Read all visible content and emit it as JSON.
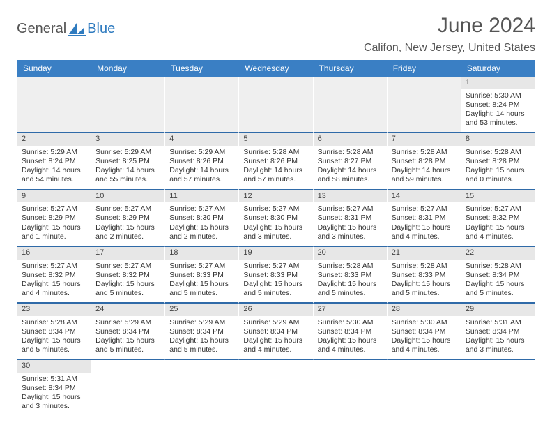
{
  "logo": {
    "general": "General",
    "blue": "Blue"
  },
  "title": "June 2024",
  "location": "Califon, New Jersey, United States",
  "colors": {
    "header_bg": "#3a7fc4",
    "header_text": "#ffffff",
    "week_divider": "#2f6aa8",
    "daynum_bg": "#e7e7e7",
    "logo_blue": "#2f7bbf",
    "text": "#333333"
  },
  "columns": [
    "Sunday",
    "Monday",
    "Tuesday",
    "Wednesday",
    "Thursday",
    "Friday",
    "Saturday"
  ],
  "leading_blanks": 6,
  "days": [
    {
      "n": "1",
      "sunrise": "Sunrise: 5:30 AM",
      "sunset": "Sunset: 8:24 PM",
      "daylight": "Daylight: 14 hours and 53 minutes."
    },
    {
      "n": "2",
      "sunrise": "Sunrise: 5:29 AM",
      "sunset": "Sunset: 8:24 PM",
      "daylight": "Daylight: 14 hours and 54 minutes."
    },
    {
      "n": "3",
      "sunrise": "Sunrise: 5:29 AM",
      "sunset": "Sunset: 8:25 PM",
      "daylight": "Daylight: 14 hours and 55 minutes."
    },
    {
      "n": "4",
      "sunrise": "Sunrise: 5:29 AM",
      "sunset": "Sunset: 8:26 PM",
      "daylight": "Daylight: 14 hours and 57 minutes."
    },
    {
      "n": "5",
      "sunrise": "Sunrise: 5:28 AM",
      "sunset": "Sunset: 8:26 PM",
      "daylight": "Daylight: 14 hours and 57 minutes."
    },
    {
      "n": "6",
      "sunrise": "Sunrise: 5:28 AM",
      "sunset": "Sunset: 8:27 PM",
      "daylight": "Daylight: 14 hours and 58 minutes."
    },
    {
      "n": "7",
      "sunrise": "Sunrise: 5:28 AM",
      "sunset": "Sunset: 8:28 PM",
      "daylight": "Daylight: 14 hours and 59 minutes."
    },
    {
      "n": "8",
      "sunrise": "Sunrise: 5:28 AM",
      "sunset": "Sunset: 8:28 PM",
      "daylight": "Daylight: 15 hours and 0 minutes."
    },
    {
      "n": "9",
      "sunrise": "Sunrise: 5:27 AM",
      "sunset": "Sunset: 8:29 PM",
      "daylight": "Daylight: 15 hours and 1 minute."
    },
    {
      "n": "10",
      "sunrise": "Sunrise: 5:27 AM",
      "sunset": "Sunset: 8:29 PM",
      "daylight": "Daylight: 15 hours and 2 minutes."
    },
    {
      "n": "11",
      "sunrise": "Sunrise: 5:27 AM",
      "sunset": "Sunset: 8:30 PM",
      "daylight": "Daylight: 15 hours and 2 minutes."
    },
    {
      "n": "12",
      "sunrise": "Sunrise: 5:27 AM",
      "sunset": "Sunset: 8:30 PM",
      "daylight": "Daylight: 15 hours and 3 minutes."
    },
    {
      "n": "13",
      "sunrise": "Sunrise: 5:27 AM",
      "sunset": "Sunset: 8:31 PM",
      "daylight": "Daylight: 15 hours and 3 minutes."
    },
    {
      "n": "14",
      "sunrise": "Sunrise: 5:27 AM",
      "sunset": "Sunset: 8:31 PM",
      "daylight": "Daylight: 15 hours and 4 minutes."
    },
    {
      "n": "15",
      "sunrise": "Sunrise: 5:27 AM",
      "sunset": "Sunset: 8:32 PM",
      "daylight": "Daylight: 15 hours and 4 minutes."
    },
    {
      "n": "16",
      "sunrise": "Sunrise: 5:27 AM",
      "sunset": "Sunset: 8:32 PM",
      "daylight": "Daylight: 15 hours and 4 minutes."
    },
    {
      "n": "17",
      "sunrise": "Sunrise: 5:27 AM",
      "sunset": "Sunset: 8:32 PM",
      "daylight": "Daylight: 15 hours and 5 minutes."
    },
    {
      "n": "18",
      "sunrise": "Sunrise: 5:27 AM",
      "sunset": "Sunset: 8:33 PM",
      "daylight": "Daylight: 15 hours and 5 minutes."
    },
    {
      "n": "19",
      "sunrise": "Sunrise: 5:27 AM",
      "sunset": "Sunset: 8:33 PM",
      "daylight": "Daylight: 15 hours and 5 minutes."
    },
    {
      "n": "20",
      "sunrise": "Sunrise: 5:28 AM",
      "sunset": "Sunset: 8:33 PM",
      "daylight": "Daylight: 15 hours and 5 minutes."
    },
    {
      "n": "21",
      "sunrise": "Sunrise: 5:28 AM",
      "sunset": "Sunset: 8:33 PM",
      "daylight": "Daylight: 15 hours and 5 minutes."
    },
    {
      "n": "22",
      "sunrise": "Sunrise: 5:28 AM",
      "sunset": "Sunset: 8:34 PM",
      "daylight": "Daylight: 15 hours and 5 minutes."
    },
    {
      "n": "23",
      "sunrise": "Sunrise: 5:28 AM",
      "sunset": "Sunset: 8:34 PM",
      "daylight": "Daylight: 15 hours and 5 minutes."
    },
    {
      "n": "24",
      "sunrise": "Sunrise: 5:29 AM",
      "sunset": "Sunset: 8:34 PM",
      "daylight": "Daylight: 15 hours and 5 minutes."
    },
    {
      "n": "25",
      "sunrise": "Sunrise: 5:29 AM",
      "sunset": "Sunset: 8:34 PM",
      "daylight": "Daylight: 15 hours and 5 minutes."
    },
    {
      "n": "26",
      "sunrise": "Sunrise: 5:29 AM",
      "sunset": "Sunset: 8:34 PM",
      "daylight": "Daylight: 15 hours and 4 minutes."
    },
    {
      "n": "27",
      "sunrise": "Sunrise: 5:30 AM",
      "sunset": "Sunset: 8:34 PM",
      "daylight": "Daylight: 15 hours and 4 minutes."
    },
    {
      "n": "28",
      "sunrise": "Sunrise: 5:30 AM",
      "sunset": "Sunset: 8:34 PM",
      "daylight": "Daylight: 15 hours and 4 minutes."
    },
    {
      "n": "29",
      "sunrise": "Sunrise: 5:31 AM",
      "sunset": "Sunset: 8:34 PM",
      "daylight": "Daylight: 15 hours and 3 minutes."
    },
    {
      "n": "30",
      "sunrise": "Sunrise: 5:31 AM",
      "sunset": "Sunset: 8:34 PM",
      "daylight": "Daylight: 15 hours and 3 minutes."
    }
  ]
}
